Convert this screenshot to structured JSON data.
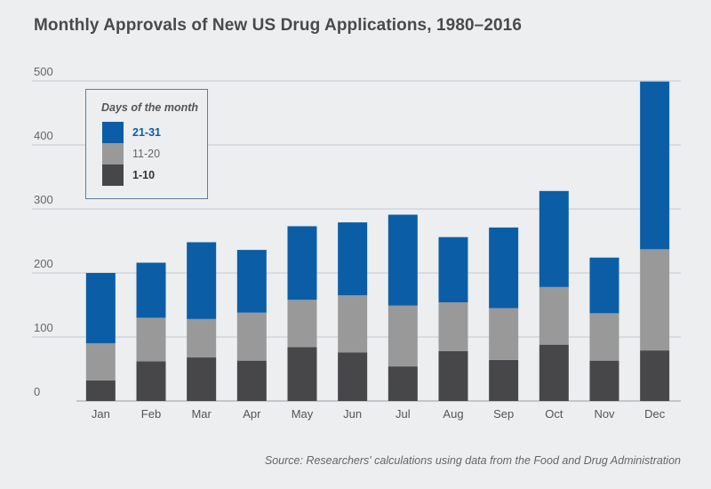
{
  "title": "Monthly Approvals of New US Drug Applications, 1980–2016",
  "source": "Source: Researchers' calculations using data from the Food and Drug Administration",
  "legend": {
    "title": "Days of the month",
    "items": [
      {
        "label": "21-31",
        "color": "#0b5ea6",
        "text_color": "#0b5ea6"
      },
      {
        "label": "11-20",
        "color": "#999999",
        "text_color": "#666666"
      },
      {
        "label": "1-10",
        "color": "#474749",
        "text_color": "#333333"
      }
    ]
  },
  "chart_data": {
    "type": "bar",
    "stacked": true,
    "categories": [
      "Jan",
      "Feb",
      "Mar",
      "Apr",
      "May",
      "Jun",
      "Jul",
      "Aug",
      "Sep",
      "Oct",
      "Nov",
      "Dec"
    ],
    "series": [
      {
        "name": "1-10",
        "color": "#474749",
        "values": [
          32,
          62,
          68,
          63,
          84,
          76,
          54,
          78,
          64,
          88,
          63,
          79
        ]
      },
      {
        "name": "11-20",
        "color": "#999999",
        "values": [
          58,
          68,
          60,
          75,
          74,
          89,
          95,
          76,
          81,
          90,
          74,
          158
        ]
      },
      {
        "name": "21-31",
        "color": "#0b5ea6",
        "values": [
          110,
          86,
          120,
          98,
          115,
          114,
          142,
          102,
          126,
          150,
          87,
          262
        ]
      }
    ],
    "y_ticks": [
      0,
      100,
      200,
      300,
      400,
      500
    ],
    "ylim": [
      0,
      500
    ],
    "grid": true,
    "legend_position": "top-left"
  }
}
